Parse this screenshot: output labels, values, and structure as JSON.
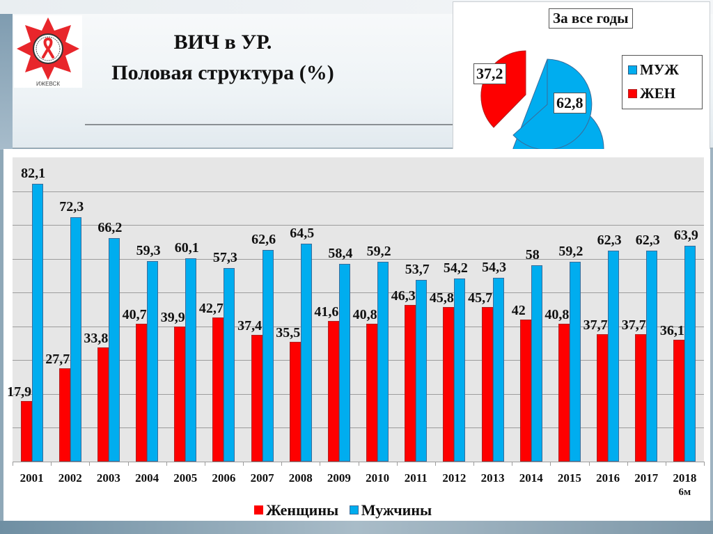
{
  "slide": {
    "title": "ВИЧ в УР.",
    "subtitle": "Половая структура (%)",
    "logo_text": "ИЖЕВСК"
  },
  "colors": {
    "female": "#fe0000",
    "male": "#00adef",
    "plot_bg": "#e6e6e6",
    "gridline": "#9c9c9c"
  },
  "pie": {
    "title": "За все годы",
    "legend": [
      {
        "label": "МУЖ",
        "color": "#00adef"
      },
      {
        "label": "ЖЕН",
        "color": "#fe0000"
      }
    ],
    "labels": {
      "male": "62,8",
      "female": "37,2"
    }
  },
  "bar_chart": {
    "legend": {
      "female": "Женщины",
      "male": "Мужчины"
    },
    "categories": [
      {
        "year": "2001",
        "sub": ""
      },
      {
        "year": "2002",
        "sub": ""
      },
      {
        "year": "2003",
        "sub": ""
      },
      {
        "year": "2004",
        "sub": ""
      },
      {
        "year": "2005",
        "sub": ""
      },
      {
        "year": "2006",
        "sub": ""
      },
      {
        "year": "2007",
        "sub": ""
      },
      {
        "year": "2008",
        "sub": ""
      },
      {
        "year": "2009",
        "sub": ""
      },
      {
        "year": "2010",
        "sub": ""
      },
      {
        "year": "2011",
        "sub": ""
      },
      {
        "year": "2012",
        "sub": ""
      },
      {
        "year": "2013",
        "sub": ""
      },
      {
        "year": "2014",
        "sub": ""
      },
      {
        "year": "2015",
        "sub": ""
      },
      {
        "year": "2016",
        "sub": ""
      },
      {
        "year": "2017",
        "sub": ""
      },
      {
        "year": "2018",
        "sub": "6м"
      }
    ],
    "female_labels": [
      "17,9",
      "27,7",
      "33,8",
      "40,7",
      "39,9",
      "42,7",
      "37,4",
      "35,5",
      "41,6",
      "40,8",
      "46,3",
      "45,8",
      "45,7",
      "42",
      "40,8",
      "37,7",
      "37,7",
      "36,1"
    ],
    "male_labels": [
      "82,1",
      "72,3",
      "66,2",
      "59,3",
      "60,1",
      "57,3",
      "62,6",
      "64,5",
      "58,4",
      "59,2",
      "53,7",
      "54,2",
      "54,3",
      "58",
      "59,2",
      "62,3",
      "62,3",
      "63,9"
    ]
  },
  "chart_data": [
    {
      "type": "bar",
      "title": "ВИЧ в УР. Половая структура (%)",
      "xlabel": "",
      "ylabel": "%",
      "categories": [
        "2001",
        "2002",
        "2003",
        "2004",
        "2005",
        "2006",
        "2007",
        "2008",
        "2009",
        "2010",
        "2011",
        "2012",
        "2013",
        "2014",
        "2015",
        "2016",
        "2017",
        "2018 6м"
      ],
      "series": [
        {
          "name": "Женщины",
          "color": "#fe0000",
          "values": [
            17.9,
            27.7,
            33.8,
            40.7,
            39.9,
            42.7,
            37.4,
            35.5,
            41.6,
            40.8,
            46.3,
            45.8,
            45.7,
            42,
            40.8,
            37.7,
            37.7,
            36.1
          ]
        },
        {
          "name": "Мужчины",
          "color": "#00adef",
          "values": [
            82.1,
            72.3,
            66.2,
            59.3,
            60.1,
            57.3,
            62.6,
            64.5,
            58.4,
            59.2,
            53.7,
            54.2,
            54.3,
            58,
            59.2,
            62.3,
            62.3,
            63.9
          ]
        }
      ],
      "ylim": [
        0,
        90
      ],
      "grid": true,
      "y_axis_labels_visible": false,
      "legend_position": "bottom",
      "data_labels": true
    },
    {
      "type": "pie",
      "title": "За все годы",
      "categories": [
        "МУЖ",
        "ЖЕН"
      ],
      "values": [
        62.8,
        37.2
      ],
      "colors": [
        "#00adef",
        "#fe0000"
      ],
      "exploded": true,
      "legend_position": "right"
    }
  ]
}
